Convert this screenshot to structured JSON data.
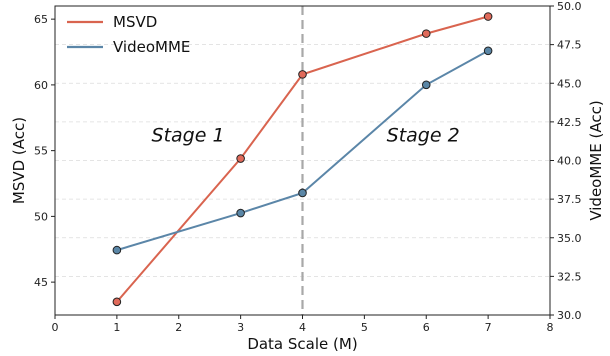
{
  "chart_data": {
    "type": "line",
    "xlabel": "Data Scale (M)",
    "ylabel_left": "MSVD (Acc)",
    "ylabel_right": "VideoMME (Acc)",
    "xlim": [
      0,
      8
    ],
    "ylim_left": [
      42.5,
      66
    ],
    "ylim_right": [
      30.0,
      50.0
    ],
    "xticks": [
      "0",
      "1",
      "2",
      "3",
      "4",
      "5",
      "6",
      "7",
      "8"
    ],
    "yticks_left": [
      "45",
      "50",
      "55",
      "60",
      "65"
    ],
    "yticks_right": [
      "30.0",
      "32.5",
      "35.0",
      "37.5",
      "40.0",
      "42.5",
      "45.0",
      "47.5",
      "50.0"
    ],
    "grid": true,
    "legend_position": "top-left",
    "divider_x": 4,
    "annotations": [
      {
        "text": "Stage 1",
        "x": 2.15,
        "y_left": 55.7
      },
      {
        "text": "Stage 2",
        "x": 5.95,
        "y_left": 55.7
      }
    ],
    "series": [
      {
        "name": "MSVD",
        "axis": "left",
        "color": "#d9644f",
        "marker_fill": "#e06a5a",
        "x": [
          1,
          3,
          4,
          6,
          7
        ],
        "y": [
          43.5,
          54.4,
          60.8,
          63.9,
          65.2
        ]
      },
      {
        "name": "VideoMME",
        "axis": "right",
        "color": "#5b86a8",
        "marker_fill": "#5a86a6",
        "x": [
          1,
          3,
          4,
          6,
          7
        ],
        "y": [
          34.2,
          36.6,
          37.9,
          44.9,
          47.1
        ]
      }
    ]
  }
}
